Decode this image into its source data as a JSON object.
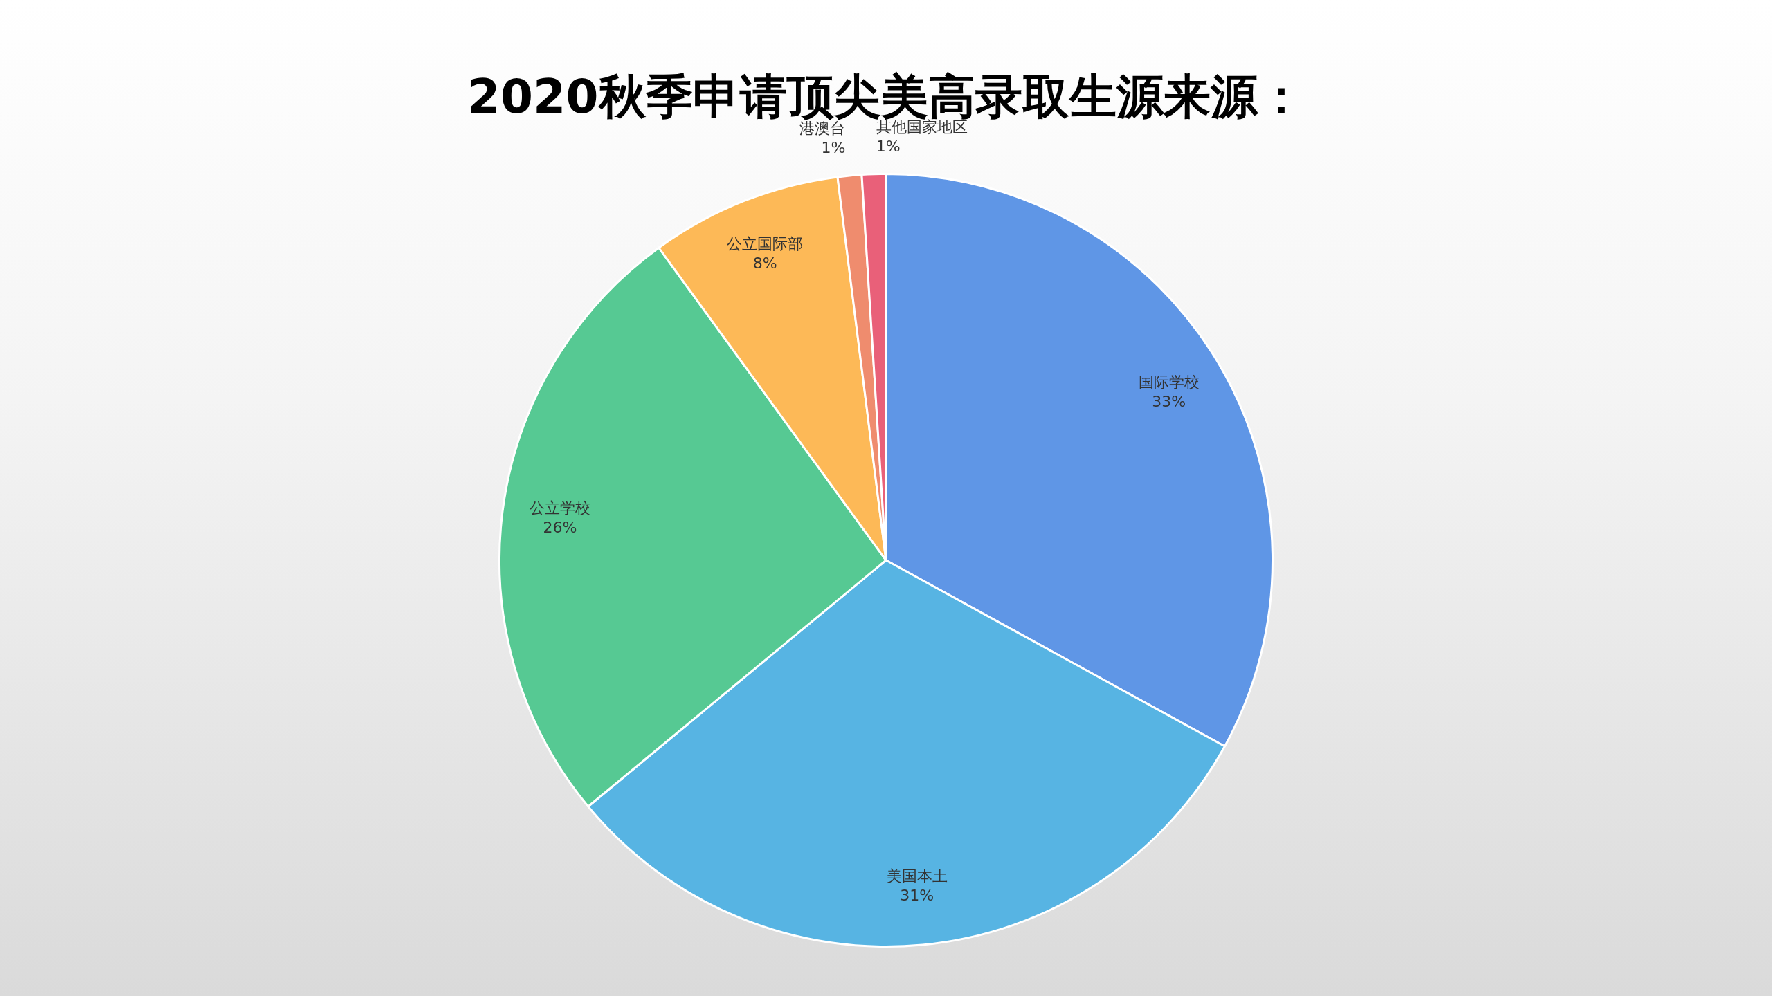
{
  "chart_data": {
    "type": "pie",
    "title": "2020秋季申请顶尖美高录取生源来源：",
    "categories": [
      "国际学校",
      "美国本土",
      "公立学校",
      "公立国际部",
      "港澳台",
      "其他国家地区"
    ],
    "values": [
      33,
      31,
      26,
      8,
      1,
      1
    ],
    "colors": [
      "#5f96e6",
      "#57b4e3",
      "#56c993",
      "#fdb957",
      "#ef8c6e",
      "#e96079"
    ],
    "value_labels": [
      "33%",
      "31%",
      "26%",
      "8%",
      "1%",
      "1%"
    ],
    "legend": false
  }
}
